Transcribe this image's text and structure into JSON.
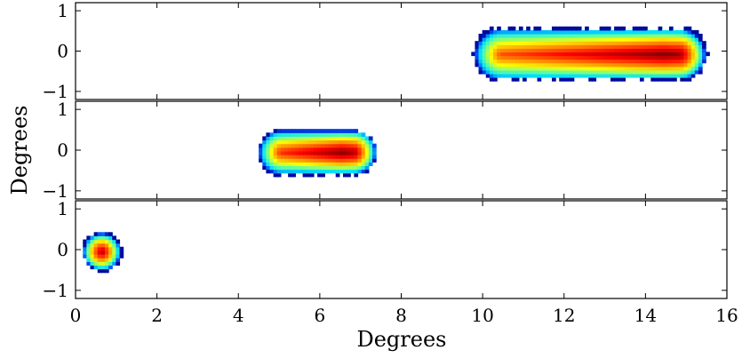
{
  "chart_data": {
    "type": "heatmap",
    "title": "",
    "xlabel": "Degrees",
    "ylabel": "Degrees",
    "xlim": [
      0,
      16
    ],
    "ylim": [
      -1.2,
      1.2
    ],
    "x_ticks": [
      0,
      2,
      4,
      6,
      8,
      10,
      12,
      14,
      16
    ],
    "x_tick_labels": [
      "0",
      "2",
      "4",
      "6",
      "8",
      "10",
      "12",
      "14",
      "16"
    ],
    "y_ticks": [
      1,
      0,
      -1
    ],
    "y_tick_labels": [
      "1",
      "0",
      "−1"
    ],
    "colormap": [
      "#00008f",
      "#0050ff",
      "#00dfff",
      "#60ff9f",
      "#ffff00",
      "#ff8000",
      "#ff0000",
      "#800000"
    ],
    "panels": [
      {
        "x_start": 10.4,
        "x_end": 14.8,
        "peak_x": 14.4,
        "half_width": 1.3,
        "y_spread": 0.62,
        "y_center": -0.03
      },
      {
        "x_start": 5.0,
        "x_end": 6.8,
        "peak_x": 6.5,
        "half_width": 0.55,
        "y_spread": 0.53,
        "y_center": 0.0
      },
      {
        "x_start": 0.6,
        "x_end": 0.6,
        "peak_x": 0.6,
        "half_width": 0.0,
        "y_spread": 0.45,
        "y_center": 0.0
      }
    ]
  }
}
